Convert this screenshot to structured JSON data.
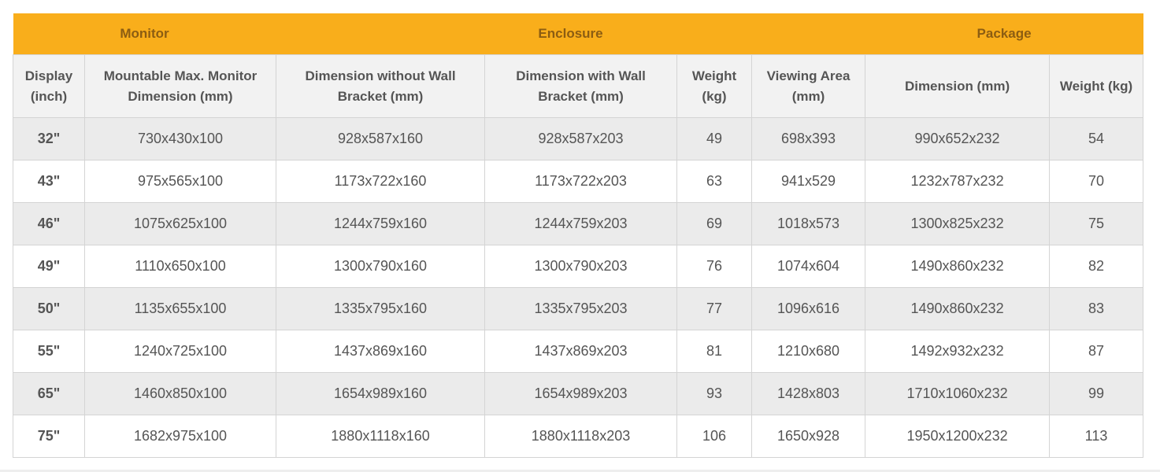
{
  "table": {
    "groups": [
      "Monitor",
      "Enclosure",
      "Package"
    ],
    "group_spans": [
      2,
      4,
      2
    ],
    "columns": [
      "Display (inch)",
      "Mountable Max. Monitor Dimension (mm)",
      "Dimension without Wall Bracket (mm)",
      "Dimension with Wall Bracket (mm)",
      "Weight (kg)",
      "Viewing Area (mm)",
      "Dimension (mm)",
      "Weight (kg)"
    ],
    "rows": [
      [
        "32\"",
        "730x430x100",
        "928x587x160",
        "928x587x203",
        "49",
        "698x393",
        "990x652x232",
        "54"
      ],
      [
        "43\"",
        "975x565x100",
        "1173x722x160",
        "1173x722x203",
        "63",
        "941x529",
        "1232x787x232",
        "70"
      ],
      [
        "46\"",
        "1075x625x100",
        "1244x759x160",
        "1244x759x203",
        "69",
        "1018x573",
        "1300x825x232",
        "75"
      ],
      [
        "49\"",
        "1110x650x100",
        "1300x790x160",
        "1300x790x203",
        "76",
        "1074x604",
        "1490x860x232",
        "82"
      ],
      [
        "50\"",
        "1135x655x100",
        "1335x795x160",
        "1335x795x203",
        "77",
        "1096x616",
        "1490x860x232",
        "83"
      ],
      [
        "55\"",
        "1240x725x100",
        "1437x869x160",
        "1437x869x203",
        "81",
        "1210x680",
        "1492x932x232",
        "87"
      ],
      [
        "65\"",
        "1460x850x100",
        "1654x989x160",
        "1654x989x203",
        "93",
        "1428x803",
        "1710x1060x232",
        "99"
      ],
      [
        "75\"",
        "1682x975x100",
        "1880x1118x160",
        "1880x1118x203",
        "106",
        "1650x928",
        "1950x1200x232",
        "113"
      ]
    ]
  }
}
